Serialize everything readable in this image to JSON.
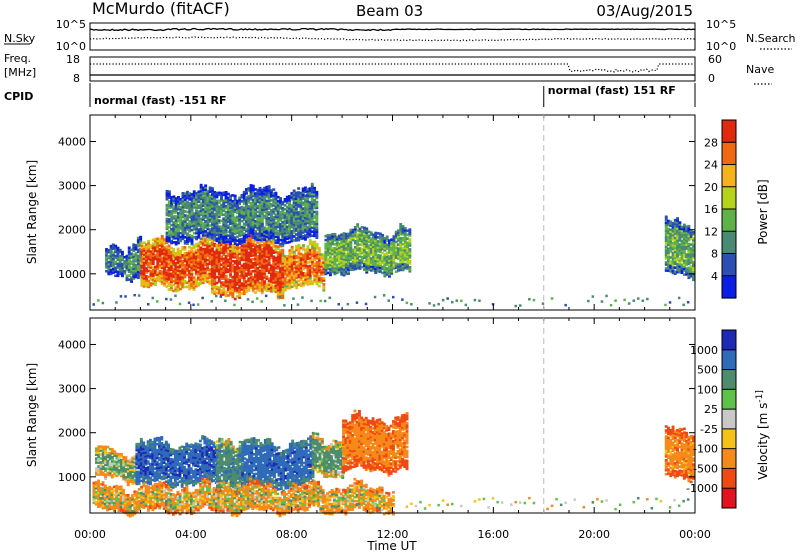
{
  "header": {
    "station": "McMurdo (fitACF)",
    "beam": "Beam 03",
    "date": "03/Aug/2015"
  },
  "strip_noise": {
    "left_label": "N.Sky",
    "right_label": "N.Search",
    "left_ticks": [
      "10^5",
      "10^0"
    ],
    "right_ticks": [
      "10^5",
      "10^0"
    ]
  },
  "strip_freq": {
    "left_label_1": "Freq.",
    "left_label_2": "[MHz]",
    "right_label": "Nave",
    "left_ticks": [
      "18",
      "8"
    ],
    "right_ticks": [
      "60",
      "0"
    ]
  },
  "strip_cpid": {
    "label": "CPID",
    "segments": [
      {
        "start_hour": 0,
        "label": "normal (fast) -151 RF"
      },
      {
        "start_hour": 18,
        "label": "normal (fast) 151 RF"
      }
    ]
  },
  "x_axis": {
    "label": "Time UT",
    "range_hours": [
      0,
      24
    ],
    "tick_labels": [
      "00:00",
      "04:00",
      "08:00",
      "12:00",
      "16:00",
      "20:00",
      "00:00"
    ]
  },
  "power_panel": {
    "ylabel": "Slant Range [km]",
    "ytick_labels": [
      "1000",
      "2000",
      "3000",
      "4000"
    ],
    "colorbar": {
      "label": "Power [dB]",
      "tick_labels": [
        "4",
        "8",
        "12",
        "16",
        "20",
        "24",
        "28"
      ],
      "colors": [
        "#0a1ee6",
        "#2b4fb2",
        "#4a8a74",
        "#5fb24a",
        "#b5d21c",
        "#f5b21a",
        "#f06a12",
        "#e02a10"
      ]
    }
  },
  "velocity_panel": {
    "ylabel": "Slant Range [km]",
    "ytick_labels": [
      "1000",
      "2000",
      "3000",
      "4000"
    ],
    "colorbar": {
      "label": "Velocity [m s^-1]",
      "tick_labels": [
        "1000",
        "500",
        "100",
        "25",
        "-25",
        "-100",
        "-500",
        "-1000"
      ],
      "colors": [
        "#1e2ab4",
        "#2f6bb8",
        "#4d8c6c",
        "#5ec24a",
        "#c8c8c8",
        "#f5c21a",
        "#f58a1a",
        "#f04a14",
        "#e0141e"
      ]
    }
  },
  "chart_data": [
    {
      "type": "heatmap",
      "title": "Power",
      "xlabel": "Time UT",
      "ylabel": "Slant Range [km]",
      "xlim": [
        0,
        24
      ],
      "ylim": [
        180,
        4600
      ],
      "colorbar_label": "Power [dB]",
      "colorbar_range": [
        0,
        32
      ],
      "regions": [
        {
          "t0": 0.6,
          "t1": 1.5,
          "r0": 900,
          "r1": 1500,
          "value": 9
        },
        {
          "t0": 1.5,
          "t1": 2.0,
          "r0": 900,
          "r1": 1700,
          "value": 11
        },
        {
          "t0": 2.0,
          "t1": 4.8,
          "r0": 650,
          "r1": 1600,
          "value": 28
        },
        {
          "t0": 4.8,
          "t1": 7.6,
          "r0": 500,
          "r1": 1700,
          "value": 30
        },
        {
          "t0": 7.6,
          "t1": 9.3,
          "r0": 650,
          "r1": 1500,
          "value": 26
        },
        {
          "t0": 9.3,
          "t1": 12.7,
          "r0": 1000,
          "r1": 1900,
          "value": 14
        },
        {
          "t0": 3.0,
          "t1": 9.0,
          "r0": 1700,
          "r1": 2800,
          "value": 10
        },
        {
          "t0": 22.8,
          "t1": 23.9,
          "r0": 950,
          "r1": 2100,
          "value": 13
        }
      ]
    },
    {
      "type": "heatmap",
      "title": "Velocity",
      "xlabel": "Time UT",
      "ylabel": "Slant Range [km]",
      "xlim": [
        0,
        24
      ],
      "ylim": [
        180,
        4600
      ],
      "colorbar_label": "Velocity [m s^-1]",
      "colorbar_range": [
        -1000,
        1000
      ],
      "regions": [
        {
          "t0": 0.2,
          "t1": 1.8,
          "r0": 900,
          "r1": 1500,
          "value": 150
        },
        {
          "t0": 1.8,
          "t1": 5.0,
          "r0": 800,
          "r1": 1700,
          "value": 900
        },
        {
          "t0": 5.0,
          "t1": 6.0,
          "r0": 700,
          "r1": 1800,
          "value": 350
        },
        {
          "t0": 6.0,
          "t1": 8.8,
          "r0": 750,
          "r1": 1700,
          "value": 800
        },
        {
          "t0": 8.8,
          "t1": 10.0,
          "r0": 1000,
          "r1": 1800,
          "value": 200
        },
        {
          "t0": 10.0,
          "t1": 12.6,
          "r0": 1100,
          "r1": 2250,
          "value": -350
        },
        {
          "t0": 0.1,
          "t1": 12.0,
          "r0": 180,
          "r1": 700,
          "value": -80
        },
        {
          "t0": 22.8,
          "t1": 23.9,
          "r0": 950,
          "r1": 2000,
          "value": -300
        }
      ]
    }
  ]
}
